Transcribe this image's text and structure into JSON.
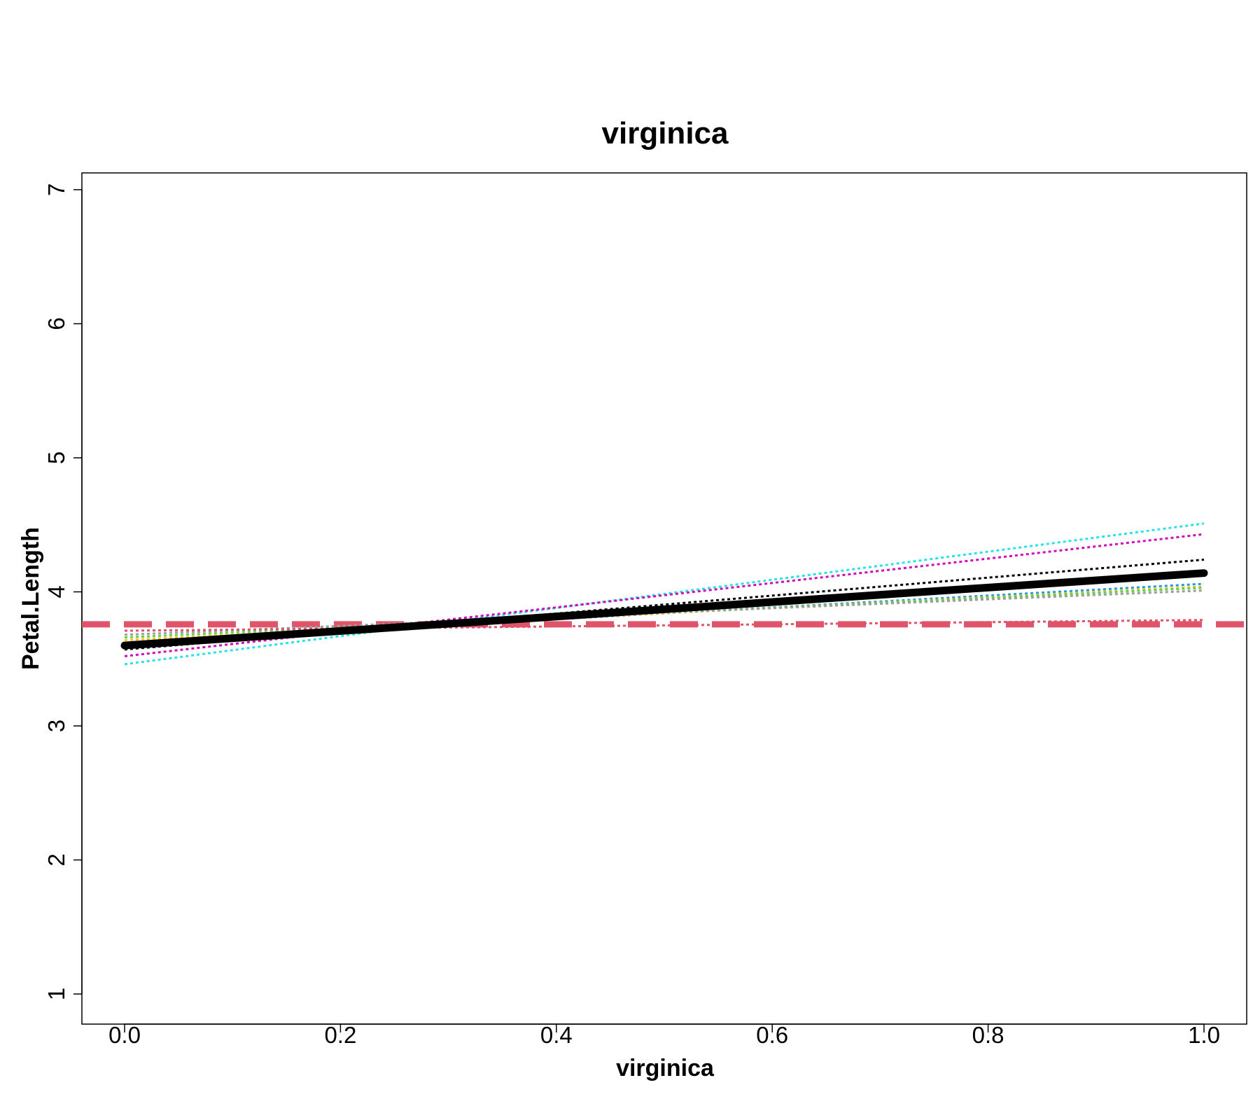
{
  "chart_data": {
    "type": "line",
    "title": "virginica",
    "xlabel": "virginica",
    "ylabel": "Petal.Length",
    "xlim": [
      0.0,
      1.0
    ],
    "ylim": [
      1,
      7
    ],
    "x_ticks": [
      "0.0",
      "0.2",
      "0.4",
      "0.6",
      "0.8",
      "1.0"
    ],
    "y_ticks": [
      "1",
      "2",
      "3",
      "4",
      "5",
      "6",
      "7"
    ],
    "grid": false,
    "legend": "none",
    "reference_line": {
      "y": 3.758,
      "color": "#df536b",
      "style": "dashed"
    },
    "series": [
      {
        "x": [
          0,
          1
        ],
        "y": [
          3.46,
          4.51
        ],
        "color": "#28e2e5",
        "style": "dotted"
      },
      {
        "x": [
          0,
          1
        ],
        "y": [
          3.52,
          4.43
        ],
        "color": "#cd0bbc",
        "style": "dotted"
      },
      {
        "x": [
          0,
          1
        ],
        "y": [
          3.57,
          4.24
        ],
        "color": "#000000",
        "style": "dotted"
      },
      {
        "x": [
          0,
          1
        ],
        "y": [
          3.62,
          4.06
        ],
        "color": "#2297e6",
        "style": "dotted"
      },
      {
        "x": [
          0,
          1
        ],
        "y": [
          3.64,
          4.04
        ],
        "color": "#f5c710",
        "style": "dotted"
      },
      {
        "x": [
          0,
          1
        ],
        "y": [
          3.66,
          4.03
        ],
        "color": "#61d04f",
        "style": "dotted"
      },
      {
        "x": [
          0,
          1
        ],
        "y": [
          3.68,
          4.01
        ],
        "color": "#9e9e9e",
        "style": "dotted"
      },
      {
        "x": [
          0,
          1
        ],
        "y": [
          3.71,
          3.79
        ],
        "color": "#df536b",
        "style": "dotted"
      },
      {
        "x": [
          0,
          1
        ],
        "y": [
          3.6,
          4.14
        ],
        "color": "#000000",
        "style": "solid-thick"
      }
    ]
  }
}
